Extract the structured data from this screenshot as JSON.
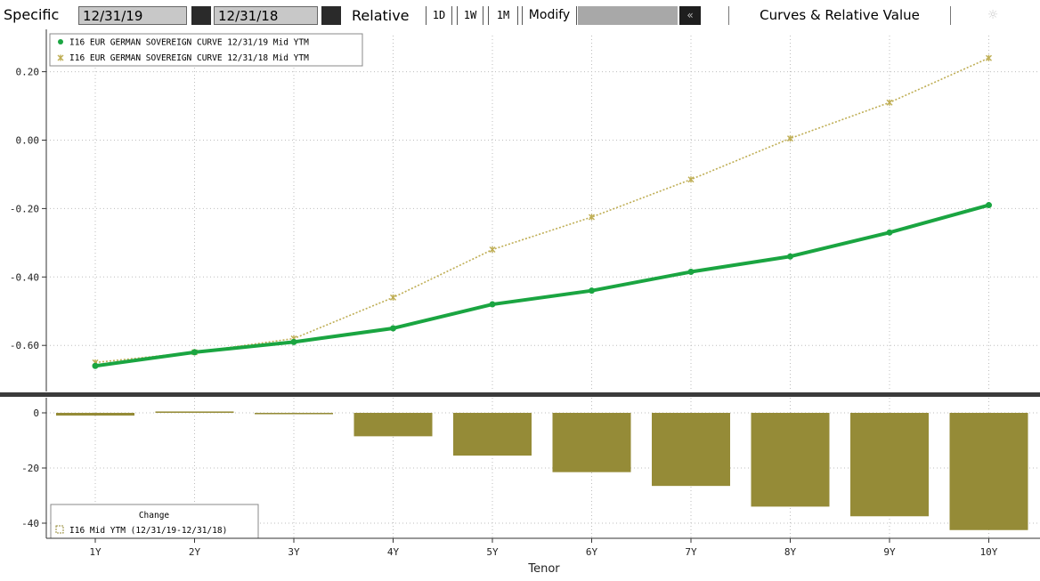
{
  "toolbar": {
    "specific_label": "Specific",
    "date1": "12/31/19",
    "date2": "12/31/18",
    "relative_label": "Relative",
    "btn_1d": "1D",
    "btn_1w": "1W",
    "btn_1m": "1M",
    "modify_label": "Modify",
    "collapse_icon": "«",
    "title": "Curves & Relative Value",
    "gear_icon": "☼"
  },
  "chart_data": [
    {
      "type": "line",
      "categories": [
        "1Y",
        "2Y",
        "3Y",
        "4Y",
        "5Y",
        "6Y",
        "7Y",
        "8Y",
        "9Y",
        "10Y"
      ],
      "series": [
        {
          "name": "I16 EUR GERMAN SOVEREIGN CURVE 12/31/19 Mid YTM",
          "color": "#1aa541",
          "values": [
            -0.66,
            -0.62,
            -0.59,
            -0.55,
            -0.48,
            -0.44,
            -0.385,
            -0.34,
            -0.27,
            -0.19
          ]
        },
        {
          "name": "I16 EUR GERMAN SOVEREIGN CURVE 12/31/18 Mid YTM",
          "color": "#bfae55",
          "values": [
            -0.65,
            -0.62,
            -0.58,
            -0.46,
            -0.32,
            -0.225,
            -0.115,
            0.005,
            0.11,
            0.24
          ]
        }
      ],
      "yticks": [
        "0.20",
        "0.00",
        "-0.20",
        "-0.40",
        "-0.60"
      ],
      "ylim": [
        -0.73,
        0.32
      ],
      "grid": true,
      "legend": "top-left"
    },
    {
      "type": "bar",
      "categories": [
        "1Y",
        "2Y",
        "3Y",
        "4Y",
        "5Y",
        "6Y",
        "7Y",
        "8Y",
        "9Y",
        "10Y"
      ],
      "series": [
        {
          "name": "I16 Mid YTM (12/31/19-12/31/18)",
          "color": "#958b37",
          "values": [
            -1,
            0.5,
            -0.5,
            -8.5,
            -15.5,
            -21.5,
            -26.5,
            -34,
            -37.5,
            -42.5
          ]
        }
      ],
      "legend_title": "Change",
      "yticks": [
        "0",
        "-20",
        "-40"
      ],
      "xlabel": "Tenor",
      "ylim": [
        -45,
        2
      ],
      "grid": true,
      "legend": "bottom-left"
    }
  ]
}
